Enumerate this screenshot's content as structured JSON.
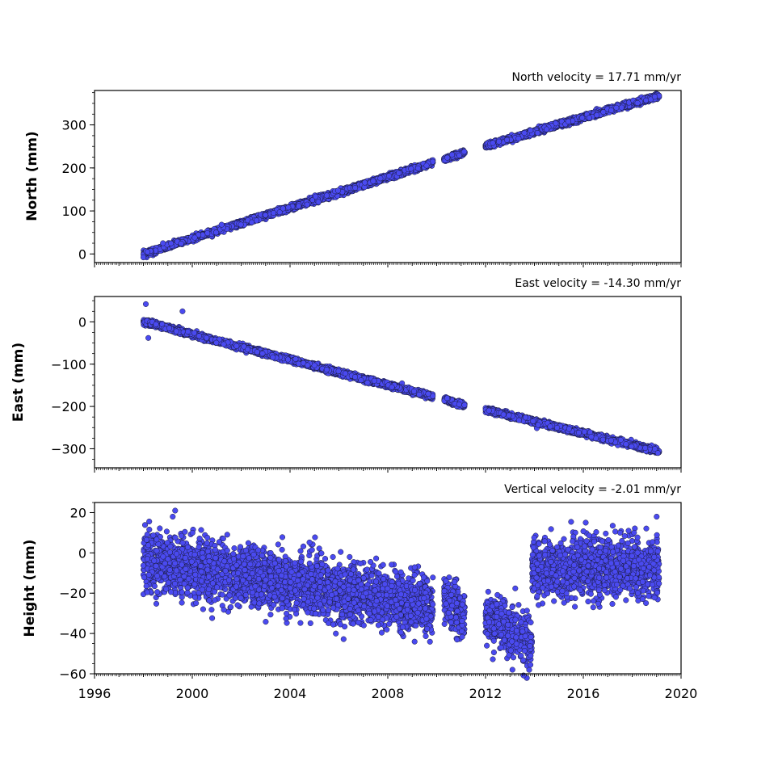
{
  "chart_data": [
    {
      "type": "scatter",
      "title": "North velocity = 17.71 mm/yr",
      "ylabel": "North (mm)",
      "ylim": [
        -20,
        380
      ],
      "yticks": [
        0,
        100,
        200,
        300
      ],
      "xlim": [
        1996,
        2020
      ],
      "segments": [
        {
          "x_start": 1998.0,
          "x_end": 2009.85,
          "y_start": 0,
          "y_end": 212,
          "noise": 3
        },
        {
          "x_start": 2010.3,
          "x_end": 2011.15,
          "y_start": 219,
          "y_end": 236,
          "noise": 3
        },
        {
          "x_start": 2012.0,
          "x_end": 2019.1,
          "y_start": 251,
          "y_end": 368,
          "noise": 3
        }
      ],
      "outliers": [
        {
          "x": 1998.0,
          "y": -8
        },
        {
          "x": 1998.8,
          "y": 25
        },
        {
          "x": 2000.1,
          "y": 38
        },
        {
          "x": 2001.2,
          "y": 68
        }
      ]
    },
    {
      "type": "scatter",
      "title": "East velocity = -14.30 mm/yr",
      "ylabel": "East (mm)",
      "ylim": [
        -345,
        60
      ],
      "yticks": [
        0,
        -100,
        -200,
        -300
      ],
      "xlim": [
        1996,
        2020
      ],
      "segments": [
        {
          "x_start": 1998.0,
          "x_end": 2009.85,
          "y_start": 0,
          "y_end": -177,
          "noise": 3
        },
        {
          "x_start": 2010.3,
          "x_end": 2011.15,
          "y_start": -183,
          "y_end": -198,
          "noise": 3
        },
        {
          "x_start": 2012.0,
          "x_end": 2019.1,
          "y_start": -208,
          "y_end": -306,
          "noise": 3
        }
      ],
      "outliers": [
        {
          "x": 1998.1,
          "y": 42
        },
        {
          "x": 1998.2,
          "y": -38
        },
        {
          "x": 1999.6,
          "y": 25
        },
        {
          "x": 2019.05,
          "y": -310
        }
      ]
    },
    {
      "type": "scatter",
      "title": "Vertical velocity = -2.01 mm/yr",
      "ylabel": "Height (mm)",
      "ylim": [
        -60,
        25
      ],
      "yticks": [
        20,
        0,
        -20,
        -40,
        -60
      ],
      "xlim": [
        1996,
        2020
      ],
      "xticks": [
        1996,
        2000,
        2004,
        2008,
        2012,
        2016,
        2020
      ],
      "segments": [
        {
          "x_start": 1998.0,
          "x_end": 2009.85,
          "y_start": -3,
          "y_end": -27,
          "noise": 7
        },
        {
          "x_start": 2010.3,
          "x_end": 2011.15,
          "y_start": -22,
          "y_end": -32,
          "noise": 6
        },
        {
          "x_start": 2012.0,
          "x_end": 2013.9,
          "y_start": -32,
          "y_end": -45,
          "noise": 6
        },
        {
          "x_start": 2013.9,
          "x_end": 2019.1,
          "y_start": -8,
          "y_end": -7,
          "noise": 7
        }
      ],
      "outliers": [
        {
          "x": 1999.3,
          "y": 21
        },
        {
          "x": 1999.2,
          "y": 18
        },
        {
          "x": 2016.1,
          "y": 15
        },
        {
          "x": 2019.0,
          "y": 18
        },
        {
          "x": 2013.1,
          "y": -58
        }
      ]
    }
  ],
  "style": {
    "marker_fill": "#4a4af0",
    "marker_edge": "#1a1a3a"
  }
}
